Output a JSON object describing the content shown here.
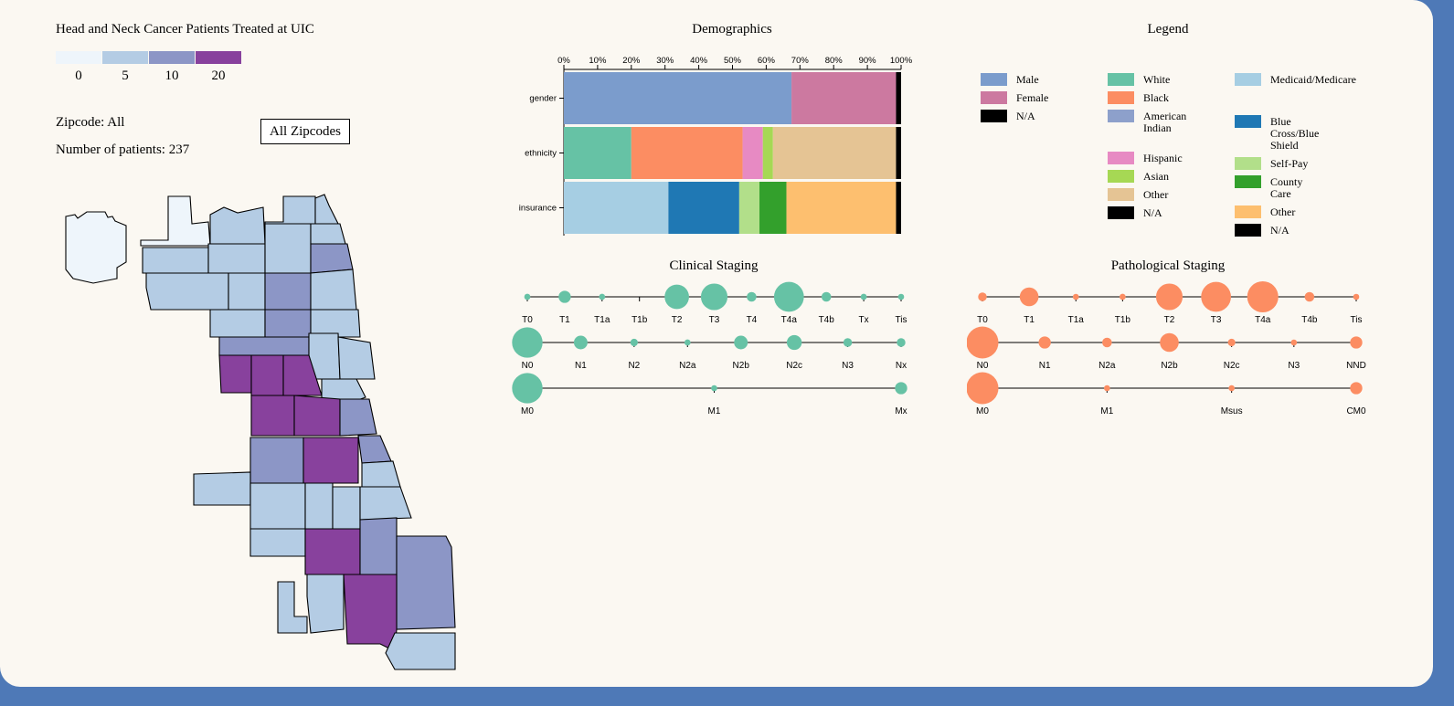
{
  "map": {
    "title": "Head and Neck Cancer Patients Treated at UIC",
    "scale": [
      {
        "label": "0",
        "color": "#eef5fb"
      },
      {
        "label": "5",
        "color": "#b4cce4"
      },
      {
        "label": "10",
        "color": "#8c96c6"
      },
      {
        "label": "20",
        "color": "#88419d"
      }
    ],
    "zipcode_text": "Zipcode: All",
    "patients_text": "Number of patients: 237",
    "button_label": "All Zipcodes"
  },
  "demographics": {
    "title": "Demographics",
    "ticks": [
      "0%",
      "10%",
      "20%",
      "30%",
      "40%",
      "50%",
      "60%",
      "70%",
      "80%",
      "90%",
      "100%"
    ]
  },
  "legend": {
    "title": "Legend",
    "gender": [
      {
        "label": "Male",
        "color": "#7b9ccc"
      },
      {
        "label": "Female",
        "color": "#cc79a0"
      },
      {
        "label": "N/A",
        "color": "#000000"
      }
    ],
    "ethnicity": [
      {
        "label": "White",
        "color": "#66c2a5"
      },
      {
        "label": "Black",
        "color": "#fc8d62"
      },
      {
        "label": "American Indian",
        "color": "#8da0cb"
      },
      {
        "label": "Hispanic",
        "color": "#e78ac3"
      },
      {
        "label": "Asian",
        "color": "#a6d854"
      },
      {
        "label": "Other",
        "color": "#e5c494"
      },
      {
        "label": "N/A",
        "color": "#000000"
      }
    ],
    "insurance": [
      {
        "label": "Medicaid/Medicare",
        "color": "#a6cee3"
      },
      {
        "label": "Blue Cross/Blue Shield",
        "color": "#1f78b4"
      },
      {
        "label": "Self-Pay",
        "color": "#b2df8a"
      },
      {
        "label": "County Care",
        "color": "#33a02c"
      },
      {
        "label": "Other",
        "color": "#fdbf6f"
      },
      {
        "label": "N/A",
        "color": "#000000"
      }
    ]
  },
  "clinical": {
    "title": "Clinical Staging",
    "color": "#66c2a5"
  },
  "pathological": {
    "title": "Pathological Staging",
    "color": "#fc8d62"
  },
  "chart_data": [
    {
      "type": "bar",
      "orientation": "horizontal-stacked",
      "title": "Demographics",
      "xlim": [
        0,
        100
      ],
      "categories": [
        "gender",
        "ethnicity",
        "insurance"
      ],
      "series": [
        {
          "category": "gender",
          "parts": [
            {
              "name": "Male",
              "value": 67.5
            },
            {
              "name": "Female",
              "value": 31
            },
            {
              "name": "N/A",
              "value": 1.5
            }
          ]
        },
        {
          "category": "ethnicity",
          "parts": [
            {
              "name": "White",
              "value": 20
            },
            {
              "name": "Black",
              "value": 33
            },
            {
              "name": "Hispanic",
              "value": 6
            },
            {
              "name": "Asian",
              "value": 3
            },
            {
              "name": "Other",
              "value": 36.5
            },
            {
              "name": "N/A",
              "value": 1.5
            }
          ]
        },
        {
          "category": "insurance",
          "parts": [
            {
              "name": "Medicaid/Medicare",
              "value": 31
            },
            {
              "name": "Blue Cross/Blue Shield",
              "value": 21
            },
            {
              "name": "Self-Pay",
              "value": 6
            },
            {
              "name": "County Care",
              "value": 8
            },
            {
              "name": "Other",
              "value": 32.5
            },
            {
              "name": "N/A",
              "value": 1.5
            }
          ]
        }
      ]
    },
    {
      "type": "scatter",
      "title": "Clinical Staging",
      "rows": [
        {
          "name": "T",
          "points": [
            {
              "label": "T0",
              "size": 2
            },
            {
              "label": "T1",
              "size": 8
            },
            {
              "label": "T1a",
              "size": 2
            },
            {
              "label": "T1b",
              "size": 0
            },
            {
              "label": "T2",
              "size": 32
            },
            {
              "label": "T3",
              "size": 38
            },
            {
              "label": "T4",
              "size": 5
            },
            {
              "label": "T4a",
              "size": 48
            },
            {
              "label": "T4b",
              "size": 5
            },
            {
              "label": "Tx",
              "size": 2
            },
            {
              "label": "Tis",
              "size": 1
            }
          ]
        },
        {
          "name": "N",
          "points": [
            {
              "label": "N0",
              "size": 50
            },
            {
              "label": "N1",
              "size": 10
            },
            {
              "label": "N2",
              "size": 3
            },
            {
              "label": "N2a",
              "size": 2
            },
            {
              "label": "N2b",
              "size": 10
            },
            {
              "label": "N2c",
              "size": 12
            },
            {
              "label": "N3",
              "size": 4
            },
            {
              "label": "Nx",
              "size": 4
            }
          ]
        },
        {
          "name": "M",
          "points": [
            {
              "label": "M0",
              "size": 50
            },
            {
              "label": "M1",
              "size": 1
            },
            {
              "label": "Mx",
              "size": 8
            }
          ]
        }
      ]
    },
    {
      "type": "scatter",
      "title": "Pathological Staging",
      "rows": [
        {
          "name": "T",
          "points": [
            {
              "label": "T0",
              "size": 4
            },
            {
              "label": "T1",
              "size": 19
            },
            {
              "label": "T1a",
              "size": 1
            },
            {
              "label": "T1b",
              "size": 2
            },
            {
              "label": "T2",
              "size": 38
            },
            {
              "label": "T3",
              "size": 48
            },
            {
              "label": "T4a",
              "size": 52
            },
            {
              "label": "T4b",
              "size": 5
            },
            {
              "label": "Tis",
              "size": 1
            }
          ]
        },
        {
          "name": "N",
          "points": [
            {
              "label": "N0",
              "size": 55
            },
            {
              "label": "N1",
              "size": 8
            },
            {
              "label": "N2a",
              "size": 5
            },
            {
              "label": "N2b",
              "size": 19
            },
            {
              "label": "N2c",
              "size": 3
            },
            {
              "label": "N3",
              "size": 1
            },
            {
              "label": "NND",
              "size": 8
            }
          ]
        },
        {
          "name": "M",
          "points": [
            {
              "label": "M0",
              "size": 55
            },
            {
              "label": "M1",
              "size": 1
            },
            {
              "label": "Msus",
              "size": 1
            },
            {
              "label": "CM0",
              "size": 8
            }
          ]
        }
      ]
    }
  ]
}
